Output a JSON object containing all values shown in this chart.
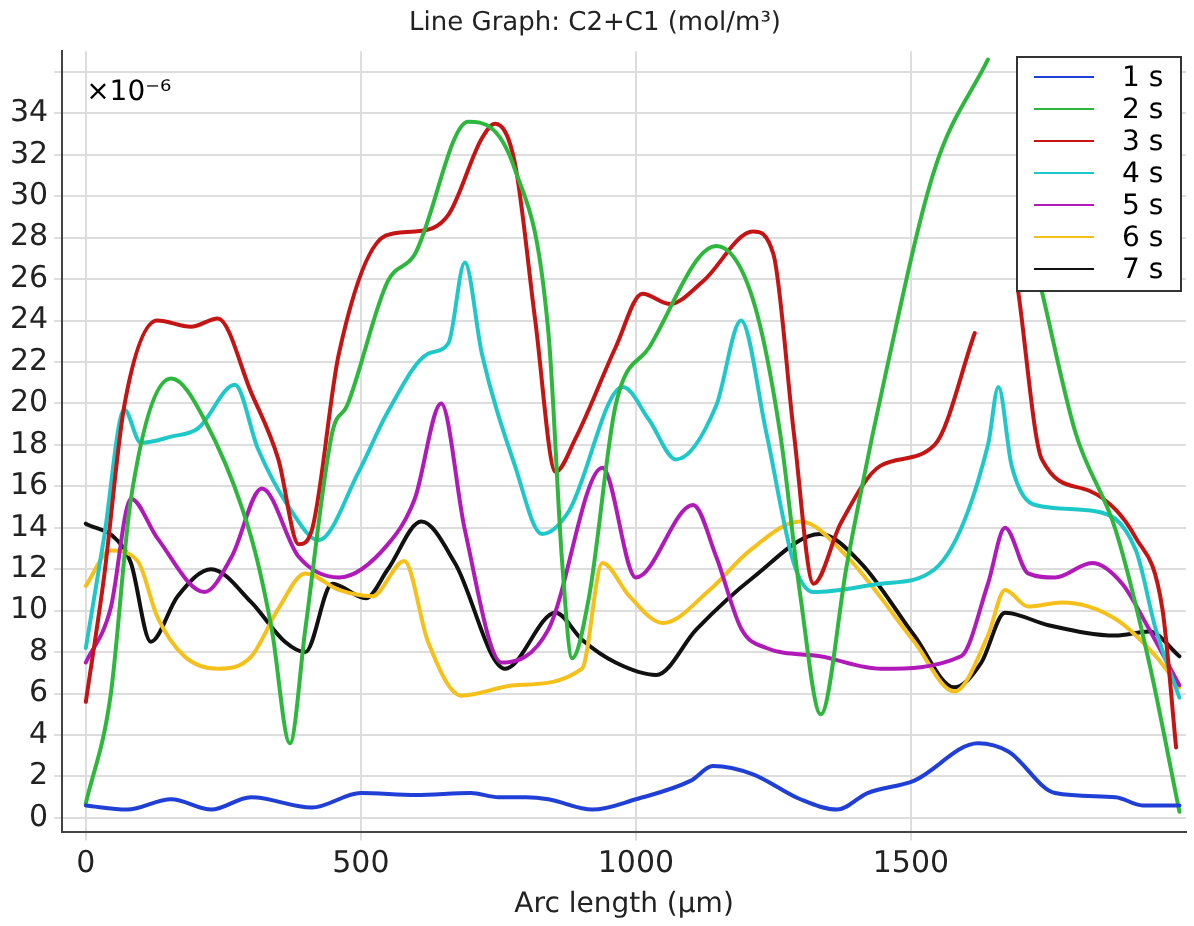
{
  "chart_data": {
    "type": "line",
    "title": "Line Graph: C2+C1 (mol/m³)",
    "xlabel": "Arc length (µm)",
    "annotations": [
      "×10⁻⁶"
    ],
    "xlim": [
      -43,
      2000
    ],
    "xticks": [
      0,
      500,
      1000,
      1500
    ],
    "ylim": [
      -0.7,
      37
    ],
    "yticks": [
      0,
      2,
      4,
      6,
      8,
      10,
      12,
      14,
      16,
      18,
      20,
      22,
      24,
      26,
      28,
      30,
      32,
      34,
      {
        "value": 36,
        "label": null
      }
    ],
    "grid": true,
    "legend": "top right",
    "marker": "none",
    "line_style": "solid",
    "series": [
      {
        "name": "1 s",
        "color": "#1f3fd6",
        "x": [
          0,
          75,
          155,
          228,
          300,
          411,
          500,
          600,
          700,
          750,
          800,
          841,
          921,
          1000,
          1100,
          1140,
          1213,
          1299,
          1366,
          1421,
          1506,
          1622,
          1677,
          1762,
          1872,
          1921,
          1988
        ],
        "values": [
          0.6,
          0.4,
          0.9,
          0.4,
          1.0,
          0.5,
          1.2,
          1.1,
          1.2,
          1.0,
          1.0,
          0.9,
          0.4,
          0.9,
          1.8,
          2.5,
          2.1,
          0.9,
          0.4,
          1.2,
          1.8,
          3.6,
          3.2,
          1.2,
          1.0,
          0.6,
          0.6
        ]
      },
      {
        "name": "2 s",
        "color": "#2db83d",
        "x": [
          0,
          45,
          82,
          155,
          216,
          301,
          338,
          371,
          399,
          448,
          475,
          549,
          598,
          695,
          780,
          841,
          866,
          884,
          915,
          963,
          1024,
          1146,
          1213,
          1262,
          1299,
          1336,
          1384,
          1457,
          1543,
          1640,
          1690,
          1738,
          1799,
          1872,
          1933,
          1988
        ],
        "values": [
          0.7,
          5.9,
          15.4,
          21.2,
          19.2,
          13.5,
          9.1,
          3.6,
          9.1,
          18.6,
          19.9,
          25.9,
          27.2,
          33.6,
          31.3,
          23.4,
          12.3,
          7.7,
          10.7,
          19.9,
          22.7,
          27.6,
          25.0,
          18.6,
          10.7,
          5.0,
          12.3,
          21.8,
          31.3,
          36.6,
          null,
          25.4,
          18.6,
          13.9,
          7.5,
          0.3
        ]
      },
      {
        "name": "3 s",
        "color": "#c41414",
        "x": [
          0,
          33,
          70,
          130,
          191,
          240,
          301,
          350,
          387,
          411,
          460,
          545,
          598,
          659,
          720,
          744,
          780,
          817,
          854,
          890,
          963,
          1012,
          1061,
          1122,
          1213,
          1250,
          1287,
          1323,
          1372,
          1445,
          1543,
          1616,
          1646,
          1670,
          1695,
          1738,
          1823,
          1909,
          1957,
          1982
        ],
        "values": [
          5.6,
          11.6,
          19.9,
          24.0,
          23.7,
          24.1,
          20.5,
          17.3,
          13.2,
          13.9,
          22.4,
          28.1,
          28.3,
          29.1,
          32.8,
          33.5,
          31.6,
          24.0,
          16.7,
          18.3,
          22.7,
          25.3,
          24.8,
          25.9,
          28.3,
          27.2,
          18.6,
          11.3,
          14.2,
          17.0,
          18.0,
          23.4,
          null,
          null,
          25.4,
          17.3,
          15.8,
          13.5,
          10.1,
          3.4
        ]
      },
      {
        "name": "4 s",
        "color": "#1fc8c8",
        "x": [
          0,
          33,
          70,
          100,
          155,
          204,
          271,
          313,
          374,
          423,
          496,
          549,
          622,
          659,
          689,
          720,
          780,
          829,
          878,
          976,
          1024,
          1073,
          1146,
          1191,
          1237,
          1287,
          1323,
          1445,
          1543,
          1640,
          1659,
          1683,
          1726,
          1835,
          1909,
          1945,
          1988
        ],
        "values": [
          8.2,
          13.5,
          19.7,
          18.1,
          18.4,
          18.8,
          20.9,
          17.8,
          14.8,
          13.4,
          16.7,
          19.6,
          22.4,
          22.9,
          26.8,
          22.4,
          17.0,
          13.7,
          14.8,
          20.8,
          19.2,
          17.3,
          19.9,
          24.0,
          18.6,
          12.3,
          10.9,
          11.3,
          12.0,
          18.0,
          20.8,
          17.0,
          15.1,
          14.8,
          12.9,
          9.1,
          5.8
        ]
      },
      {
        "name": "5 s",
        "color": "#b01ab8",
        "x": [
          0,
          45,
          82,
          130,
          216,
          265,
          320,
          387,
          460,
          549,
          598,
          646,
          689,
          756,
          841,
          939,
          1000,
          1104,
          1146,
          1192,
          1237,
          1335,
          1445,
          1591,
          1640,
          1671,
          1713,
          1762,
          1829,
          1884,
          1933,
          1988
        ],
        "values": [
          7.5,
          10.1,
          15.4,
          13.5,
          10.9,
          12.6,
          15.9,
          12.6,
          11.6,
          13.2,
          15.4,
          20.0,
          13.9,
          7.5,
          9.1,
          16.9,
          11.6,
          15.1,
          12.6,
          9.1,
          8.2,
          7.8,
          7.2,
          7.8,
          11.3,
          14.0,
          11.8,
          11.6,
          12.3,
          11.3,
          9.1,
          6.4
        ]
      },
      {
        "name": "6 s",
        "color": "#f5c01a",
        "x": [
          0,
          45,
          94,
          130,
          179,
          240,
          301,
          350,
          399,
          460,
          521,
          579,
          622,
          683,
          780,
          902,
          939,
          988,
          1049,
          1134,
          1207,
          1299,
          1384,
          1506,
          1579,
          1640,
          1671,
          1713,
          1774,
          1872,
          1945,
          1988
        ],
        "values": [
          11.2,
          12.9,
          12.4,
          9.7,
          7.8,
          7.2,
          7.8,
          10.1,
          11.8,
          11.0,
          10.7,
          12.4,
          8.5,
          5.9,
          6.4,
          7.2,
          12.3,
          10.7,
          9.4,
          11.0,
          12.9,
          14.3,
          12.6,
          8.5,
          6.1,
          8.8,
          11.0,
          10.2,
          10.4,
          9.6,
          7.8,
          6.3
        ]
      },
      {
        "name": "7 s",
        "color": "#111111",
        "x": [
          0,
          57,
          82,
          118,
          167,
          228,
          301,
          362,
          399,
          448,
          509,
          549,
          610,
          671,
          762,
          854,
          902,
          963,
          1037,
          1110,
          1213,
          1335,
          1409,
          1506,
          1579,
          1628,
          1671,
          1750,
          1872,
          1933,
          1988
        ],
        "values": [
          14.2,
          13.4,
          12.3,
          8.5,
          10.7,
          12.0,
          10.4,
          8.5,
          8.0,
          11.3,
          10.6,
          12.0,
          14.3,
          12.3,
          7.2,
          9.9,
          8.6,
          7.5,
          6.9,
          9.1,
          11.6,
          13.7,
          12.3,
          8.8,
          6.3,
          7.5,
          9.9,
          9.3,
          8.8,
          9.0,
          7.8
        ]
      }
    ]
  }
}
